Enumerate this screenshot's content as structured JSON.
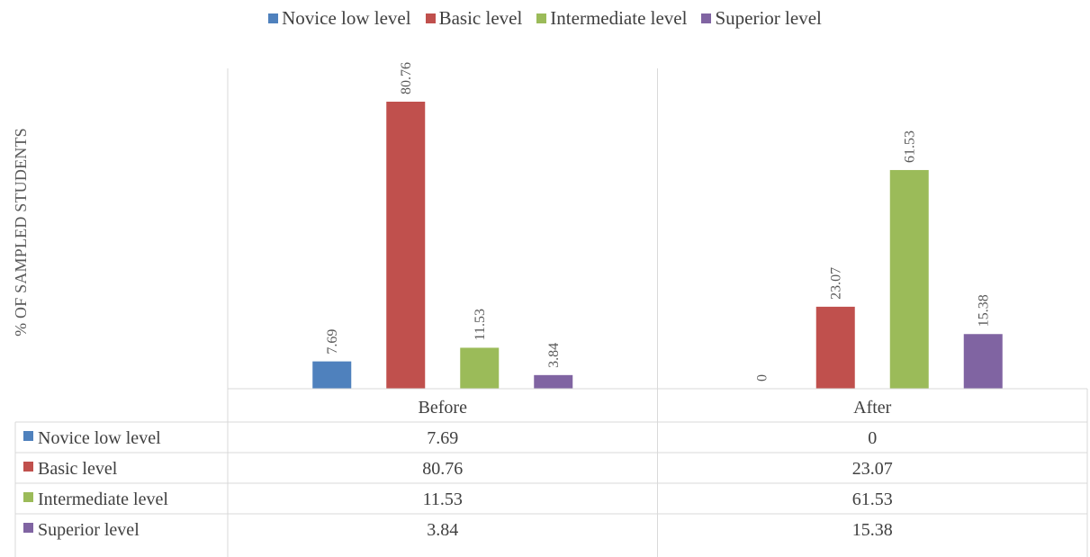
{
  "chart_data": {
    "type": "bar",
    "title": "",
    "xlabel": "",
    "ylabel": "% OF SAMPLED STUDENTS",
    "categories": [
      "Before",
      "After"
    ],
    "series": [
      {
        "name": "Novice low level",
        "values": [
          7.69,
          0
        ],
        "color": "#4f81bd"
      },
      {
        "name": "Basic level",
        "values": [
          80.76,
          23.07
        ],
        "color": "#c0504d"
      },
      {
        "name": "Intermediate level",
        "values": [
          11.53,
          61.53
        ],
        "color": "#9bbb59"
      },
      {
        "name": "Superior level",
        "values": [
          3.84,
          15.38
        ],
        "color": "#8064a2"
      }
    ],
    "ylim": [
      0,
      90
    ],
    "grid": false,
    "legend": "top",
    "data_table": true
  }
}
